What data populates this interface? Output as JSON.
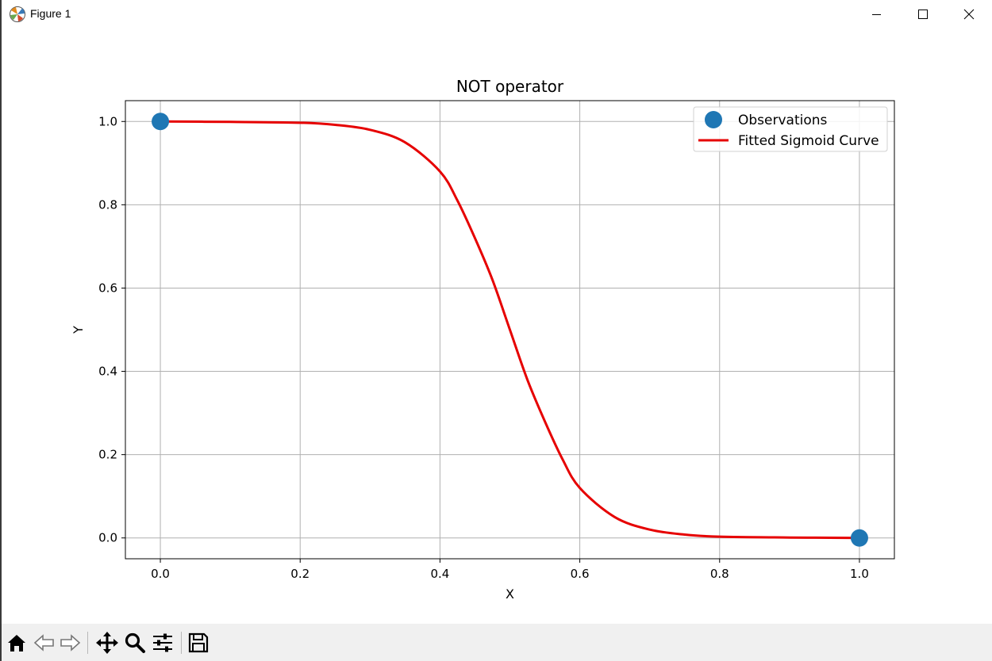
{
  "window": {
    "title": "Figure 1",
    "controls": [
      "minimize-icon",
      "maximize-icon",
      "close-icon"
    ]
  },
  "toolbar": {
    "buttons": [
      {
        "name": "home-button",
        "icon": "home-icon"
      },
      {
        "name": "back-button",
        "icon": "back-arrow-icon"
      },
      {
        "name": "forward-button",
        "icon": "forward-arrow-icon"
      },
      {
        "name": "pan-button",
        "icon": "move-icon"
      },
      {
        "name": "zoom-button",
        "icon": "zoom-icon"
      },
      {
        "name": "configure-subplots-button",
        "icon": "sliders-icon"
      },
      {
        "name": "save-button",
        "icon": "save-icon"
      }
    ]
  },
  "chart_data": {
    "type": "line",
    "title": "NOT operator",
    "xlabel": "X",
    "ylabel": "Y",
    "xlim": [
      -0.05,
      1.05
    ],
    "ylim": [
      -0.05,
      1.05
    ],
    "xticks": [
      "0.0",
      "0.2",
      "0.4",
      "0.6",
      "0.8",
      "1.0"
    ],
    "yticks": [
      "0.0",
      "0.2",
      "0.4",
      "0.6",
      "0.8",
      "1.0"
    ],
    "grid": true,
    "legend_position": "top-right",
    "series": [
      {
        "name": "Observations",
        "kind": "scatter",
        "color": "#1f77b4",
        "x": [
          0.0,
          1.0
        ],
        "y": [
          1.0,
          0.0
        ]
      },
      {
        "name": "Fitted Sigmoid Curve",
        "kind": "line",
        "color": "#e60000",
        "x": [
          0.0,
          0.1,
          0.2,
          0.25,
          0.3,
          0.35,
          0.4,
          0.425,
          0.45,
          0.475,
          0.5,
          0.525,
          0.55,
          0.575,
          0.6,
          0.65,
          0.7,
          0.75,
          0.8,
          0.9,
          1.0
        ],
        "y": [
          1.0,
          0.999,
          0.997,
          0.992,
          0.98,
          0.95,
          0.88,
          0.81,
          0.72,
          0.62,
          0.5,
          0.38,
          0.28,
          0.19,
          0.12,
          0.05,
          0.02,
          0.008,
          0.003,
          0.001,
          0.0
        ]
      }
    ]
  }
}
